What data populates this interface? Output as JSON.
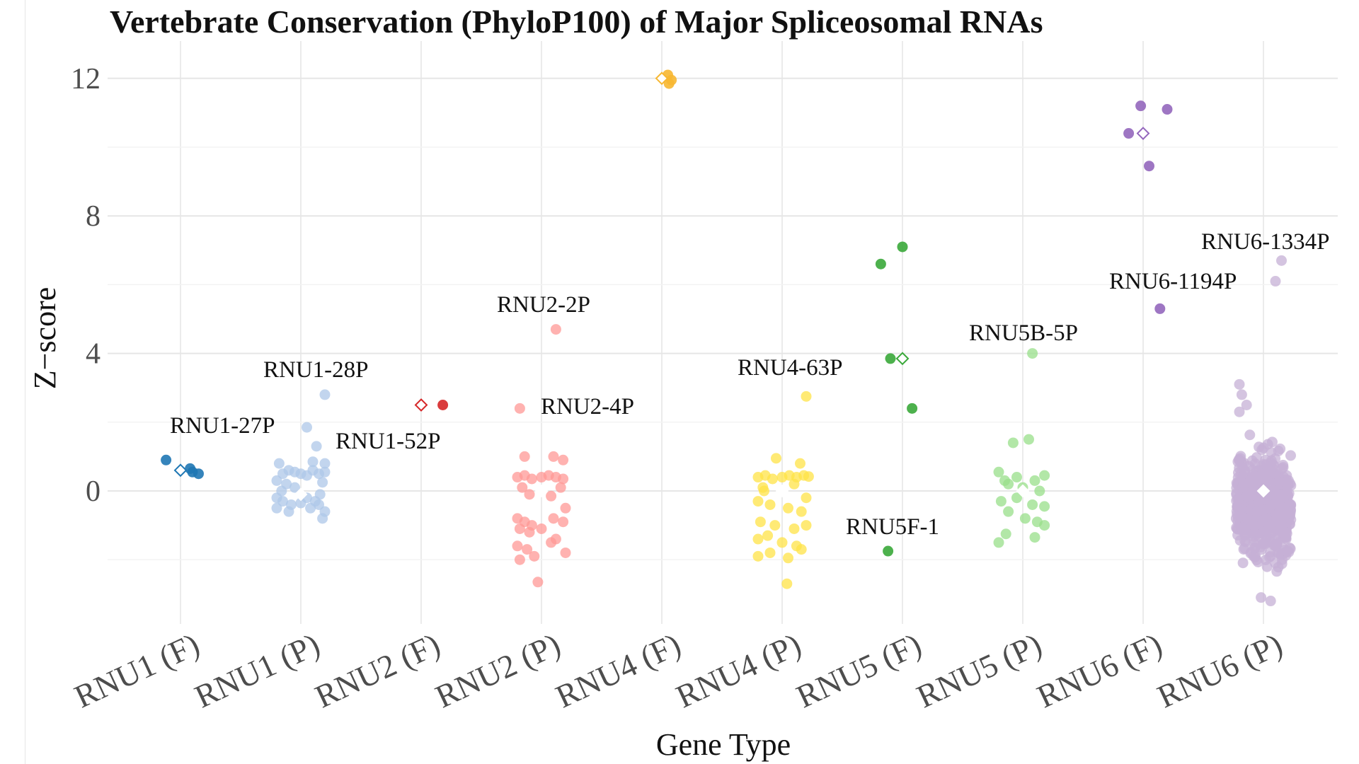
{
  "chart_data": {
    "type": "scatter",
    "subtype": "jittered strip plot with mean markers",
    "title": "Vertebrate Conservation (PhyloP100) of Major Spliceosomal RNAs",
    "xlabel": "Gene Type",
    "ylabel": "Z−score",
    "categories": [
      "RNU1 (F)",
      "RNU1 (P)",
      "RNU2 (F)",
      "RNU2 (P)",
      "RNU4 (F)",
      "RNU4 (P)",
      "RNU5 (F)",
      "RNU5 (P)",
      "RNU6 (F)",
      "RNU6 (P)"
    ],
    "y_ticks": [
      0,
      4,
      8,
      12
    ],
    "ylim": [
      -3.9,
      12.9
    ],
    "grid": true,
    "mean_marker": "hollow diamond (white for pseudogene groups)",
    "series": [
      {
        "category": "RNU1 (F)",
        "color": "#1f77b4",
        "mean": 0.6,
        "points": [
          [
            -0.12,
            0.9
          ],
          [
            0.08,
            0.65
          ],
          [
            0.1,
            0.55
          ],
          [
            0.15,
            0.5
          ]
        ]
      },
      {
        "category": "RNU1 (P)",
        "color": "#aec7e8",
        "mean": -0.1,
        "points": [
          [
            0.2,
            2.8
          ],
          [
            0.05,
            1.85
          ],
          [
            0.13,
            1.3
          ],
          [
            -0.2,
            0.3
          ],
          [
            -0.15,
            0.5
          ],
          [
            -0.1,
            0.6
          ],
          [
            -0.05,
            0.55
          ],
          [
            0,
            0.5
          ],
          [
            0.05,
            0.45
          ],
          [
            0.1,
            0.6
          ],
          [
            0.15,
            0.5
          ],
          [
            0.2,
            0.55
          ],
          [
            -0.18,
            0.8
          ],
          [
            0.1,
            0.85
          ],
          [
            0.2,
            0.8
          ],
          [
            -0.12,
            0.2
          ],
          [
            0.18,
            0.25
          ],
          [
            -0.2,
            -0.2
          ],
          [
            -0.15,
            -0.3
          ],
          [
            -0.08,
            -0.4
          ],
          [
            0,
            -0.35
          ],
          [
            0.08,
            -0.5
          ],
          [
            0.15,
            -0.4
          ],
          [
            0.2,
            -0.6
          ],
          [
            -0.2,
            -0.5
          ],
          [
            -0.1,
            -0.6
          ],
          [
            0.12,
            -0.3
          ],
          [
            0.18,
            -0.8
          ],
          [
            -0.16,
            0
          ],
          [
            0.16,
            -0.1
          ],
          [
            -0.05,
            0.1
          ],
          [
            0.05,
            -0.2
          ]
        ]
      },
      {
        "category": "RNU2 (F)",
        "color": "#d62728",
        "mean": 2.5,
        "points": [
          [
            0.18,
            2.5
          ]
        ]
      },
      {
        "category": "RNU2 (P)",
        "color": "#ff9896",
        "mean": 0,
        "points": [
          [
            0.12,
            4.7
          ],
          [
            -0.18,
            2.4
          ],
          [
            -0.14,
            1.0
          ],
          [
            0.1,
            1.0
          ],
          [
            0.18,
            0.9
          ],
          [
            -0.2,
            0.4
          ],
          [
            -0.14,
            0.45
          ],
          [
            -0.08,
            0.35
          ],
          [
            0,
            0.4
          ],
          [
            0.06,
            0.45
          ],
          [
            0.12,
            0.4
          ],
          [
            0.18,
            0.35
          ],
          [
            -0.16,
            0.1
          ],
          [
            0.16,
            0.1
          ],
          [
            -0.1,
            -0.1
          ],
          [
            0.08,
            -0.15
          ],
          [
            -0.2,
            -0.8
          ],
          [
            -0.14,
            -0.9
          ],
          [
            -0.08,
            -1.0
          ],
          [
            0.1,
            -0.8
          ],
          [
            0.18,
            -0.9
          ],
          [
            -0.18,
            -1.1
          ],
          [
            -0.1,
            -1.2
          ],
          [
            0,
            -1.1
          ],
          [
            0.12,
            -1.4
          ],
          [
            0.2,
            -0.5
          ],
          [
            -0.2,
            -1.6
          ],
          [
            -0.12,
            -1.7
          ],
          [
            -0.18,
            -2.0
          ],
          [
            -0.06,
            -1.9
          ],
          [
            0.2,
            -1.8
          ],
          [
            -0.03,
            -2.65
          ],
          [
            0.08,
            -1.5
          ]
        ]
      },
      {
        "category": "RNU4 (F)",
        "color": "#f7b731",
        "mean": 12,
        "points": [
          [
            0.05,
            12.1
          ],
          [
            0.08,
            11.95
          ],
          [
            0.06,
            11.85
          ]
        ]
      },
      {
        "category": "RNU4 (P)",
        "color": "#ffe347",
        "mean": 0,
        "points": [
          [
            0.2,
            2.75
          ],
          [
            -0.05,
            0.95
          ],
          [
            0.15,
            0.8
          ],
          [
            -0.2,
            0.4
          ],
          [
            -0.14,
            0.45
          ],
          [
            -0.08,
            0.35
          ],
          [
            0,
            0.4
          ],
          [
            0.06,
            0.45
          ],
          [
            0.12,
            0.4
          ],
          [
            0.18,
            0.45
          ],
          [
            0.22,
            0.42
          ],
          [
            -0.16,
            0.1
          ],
          [
            0.1,
            0.2
          ],
          [
            -0.2,
            -0.3
          ],
          [
            -0.1,
            -0.4
          ],
          [
            0.05,
            -0.5
          ],
          [
            0.16,
            -0.6
          ],
          [
            -0.18,
            -0.9
          ],
          [
            -0.06,
            -1.0
          ],
          [
            0.1,
            -1.1
          ],
          [
            0.2,
            -1.0
          ],
          [
            -0.2,
            -1.4
          ],
          [
            -0.12,
            -1.3
          ],
          [
            0,
            -1.5
          ],
          [
            0.12,
            -1.6
          ],
          [
            -0.2,
            -1.9
          ],
          [
            -0.1,
            -1.8
          ],
          [
            0.05,
            -1.95
          ],
          [
            0.16,
            -1.7
          ],
          [
            0.04,
            -2.7
          ],
          [
            -0.15,
            0.0
          ],
          [
            0.2,
            -0.2
          ]
        ]
      },
      {
        "category": "RNU5 (F)",
        "color": "#3aa83a",
        "mean": 3.85,
        "points": [
          [
            0,
            7.1
          ],
          [
            -0.18,
            6.6
          ],
          [
            -0.1,
            3.85
          ],
          [
            0.08,
            2.4
          ],
          [
            -0.12,
            -1.75
          ]
        ]
      },
      {
        "category": "RNU5 (P)",
        "color": "#98df8a",
        "mean": 0,
        "points": [
          [
            0.08,
            4.0
          ],
          [
            0.05,
            1.5
          ],
          [
            -0.08,
            1.4
          ],
          [
            -0.2,
            0.55
          ],
          [
            -0.15,
            0.3
          ],
          [
            -0.05,
            0.4
          ],
          [
            0.1,
            0.3
          ],
          [
            0.18,
            0.45
          ],
          [
            -0.12,
            0.2
          ],
          [
            0,
            0.1
          ],
          [
            0.14,
            0.0
          ],
          [
            -0.18,
            -0.3
          ],
          [
            -0.05,
            -0.2
          ],
          [
            0.08,
            -0.4
          ],
          [
            0.18,
            -0.45
          ],
          [
            -0.12,
            -0.6
          ],
          [
            0.02,
            -0.8
          ],
          [
            0.12,
            -0.9
          ],
          [
            0.18,
            -1.0
          ],
          [
            -0.2,
            -1.5
          ],
          [
            -0.14,
            -1.25
          ],
          [
            0.1,
            -1.35
          ]
        ]
      },
      {
        "category": "RNU6 (F)",
        "color": "#9467bd",
        "mean": 10.4,
        "points": [
          [
            -0.02,
            11.2
          ],
          [
            0.2,
            11.1
          ],
          [
            -0.12,
            10.4
          ],
          [
            0.05,
            9.45
          ],
          [
            0.14,
            5.3
          ]
        ]
      },
      {
        "category": "RNU6 (P)",
        "color": "#c5b0d5",
        "mean": 0,
        "points": "dense cloud of ~1000 points spanning about -2.6 to 1.6, plus outliers near 6.7, 6.1, 3.1, 2.8, 2.5, 2.3, -3.1, -3.2"
      }
    ],
    "annotations": [
      {
        "text": "RNU1-27P",
        "color": "#111111"
      },
      {
        "text": "RNU1-28P",
        "color": "#111111"
      },
      {
        "text": "RNU1-52P",
        "color": "#111111"
      },
      {
        "text": "RNU2-2P",
        "color": "#111111"
      },
      {
        "text": "RNU2-4P",
        "color": "#111111"
      },
      {
        "text": "RNU4-63P",
        "color": "#111111"
      },
      {
        "text": "RNU5F-1",
        "color": "#4a6fe3"
      },
      {
        "text": "RNU5B-5P",
        "color": "#111111"
      },
      {
        "text": "RNU6-1194P",
        "color": "#111111"
      },
      {
        "text": "RNU6-1334P",
        "color": "#111111"
      }
    ]
  }
}
